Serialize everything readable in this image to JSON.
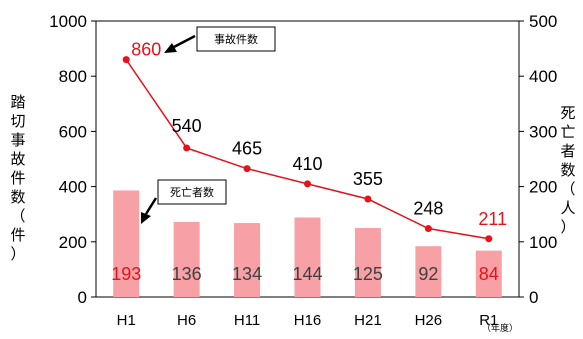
{
  "chart_data": {
    "type": "bar",
    "categories": [
      "H1",
      "H6",
      "H11",
      "H16",
      "H21",
      "H26",
      "R1"
    ],
    "x_unit": "（年度）",
    "series": [
      {
        "name": "事故件数",
        "kind": "line",
        "axis": "left",
        "values": [
          860,
          540,
          465,
          410,
          355,
          248,
          211
        ],
        "color": "#e8111a"
      },
      {
        "name": "死亡者数",
        "kind": "bar",
        "axis": "right",
        "values": [
          193,
          136,
          134,
          144,
          125,
          92,
          84
        ],
        "color": "#f7a1a6"
      }
    ],
    "ylabel_left": "踏切事故件数（件）",
    "ylabel_right": "死亡者数（人）",
    "ylim_left": [
      0,
      1000
    ],
    "ylim_right": [
      0,
      500
    ],
    "left_ticks": [
      0,
      200,
      400,
      600,
      800,
      1000
    ],
    "right_ticks": [
      0,
      100,
      200,
      300,
      400,
      500
    ],
    "highlight_color": "#e8111a",
    "label_color": "#404040",
    "grid": false,
    "legend": "callouts"
  }
}
